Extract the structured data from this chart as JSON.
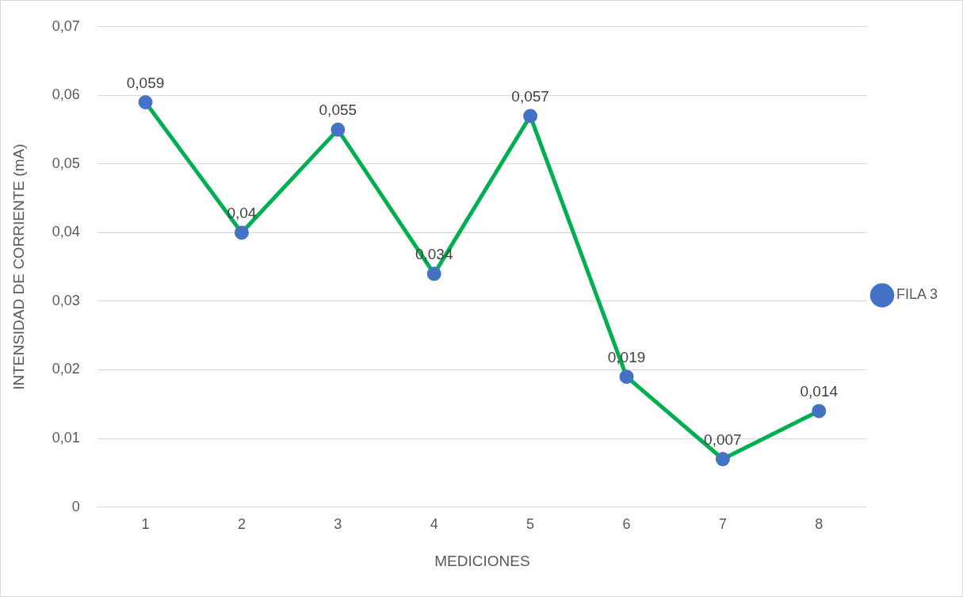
{
  "chart_data": {
    "type": "line",
    "xlabel": "MEDICIONES",
    "ylabel": "INTENSIDAD DE CORRIENTE (mA)",
    "categories": [
      "1",
      "2",
      "3",
      "4",
      "5",
      "6",
      "7",
      "8"
    ],
    "series": [
      {
        "name": "FILA 3",
        "color": "#00b050",
        "colors": [
          "#4472c4",
          "#4472c4",
          "#4472c4",
          "#4472c4",
          "#4472c4",
          "#4472c4",
          "#4472c4",
          "#4472c4"
        ],
        "values": [
          0.059,
          0.04,
          0.055,
          0.034,
          0.057,
          0.019,
          0.007,
          0.014
        ],
        "value_labels": [
          "0,059",
          "0,04",
          "0,055",
          "0,034",
          "0,057",
          "0,019",
          "0,007",
          "0,014"
        ]
      }
    ],
    "ylim": [
      0,
      0.07
    ],
    "yticks": [
      {
        "value": 0,
        "label": "0"
      },
      {
        "value": 0.01,
        "label": "0,01"
      },
      {
        "value": 0.02,
        "label": "0,02"
      },
      {
        "value": 0.03,
        "label": "0,03"
      },
      {
        "value": 0.04,
        "label": "0,04"
      },
      {
        "value": 0.05,
        "label": "0,05"
      },
      {
        "value": 0.06,
        "label": "0,06"
      },
      {
        "value": 0.07,
        "label": "0,07"
      }
    ],
    "grid": "y",
    "legend": "right",
    "marker": "circle",
    "line_style": "solid"
  }
}
